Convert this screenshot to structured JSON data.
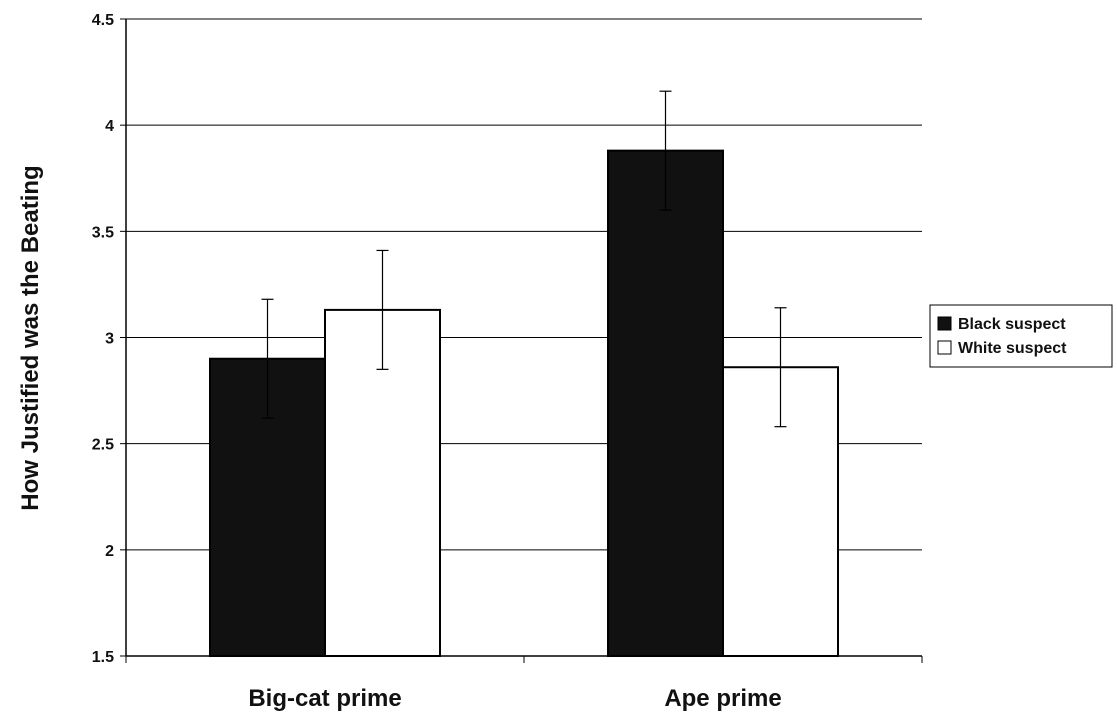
{
  "chart_data": {
    "type": "bar",
    "categories": [
      "Big-cat prime",
      "Ape prime"
    ],
    "series": [
      {
        "name": "Black suspect",
        "values": [
          2.9,
          3.88
        ],
        "errors": [
          0.28,
          0.28
        ],
        "color": "#111111"
      },
      {
        "name": "White suspect",
        "values": [
          3.13,
          2.86
        ],
        "errors": [
          0.28,
          0.28
        ],
        "color": "#ffffff"
      }
    ],
    "title": "",
    "xlabel": "",
    "ylabel": "How Justified was the Beating",
    "ylim": [
      1.5,
      4.5
    ],
    "yticks": [
      1.5,
      2,
      2.5,
      3,
      3.5,
      4,
      4.5
    ],
    "ytick_labels": [
      "1.5",
      "2",
      "2.5",
      "3",
      "3.5",
      "4",
      "4.5"
    ],
    "grid": true,
    "legend_position": "right"
  }
}
